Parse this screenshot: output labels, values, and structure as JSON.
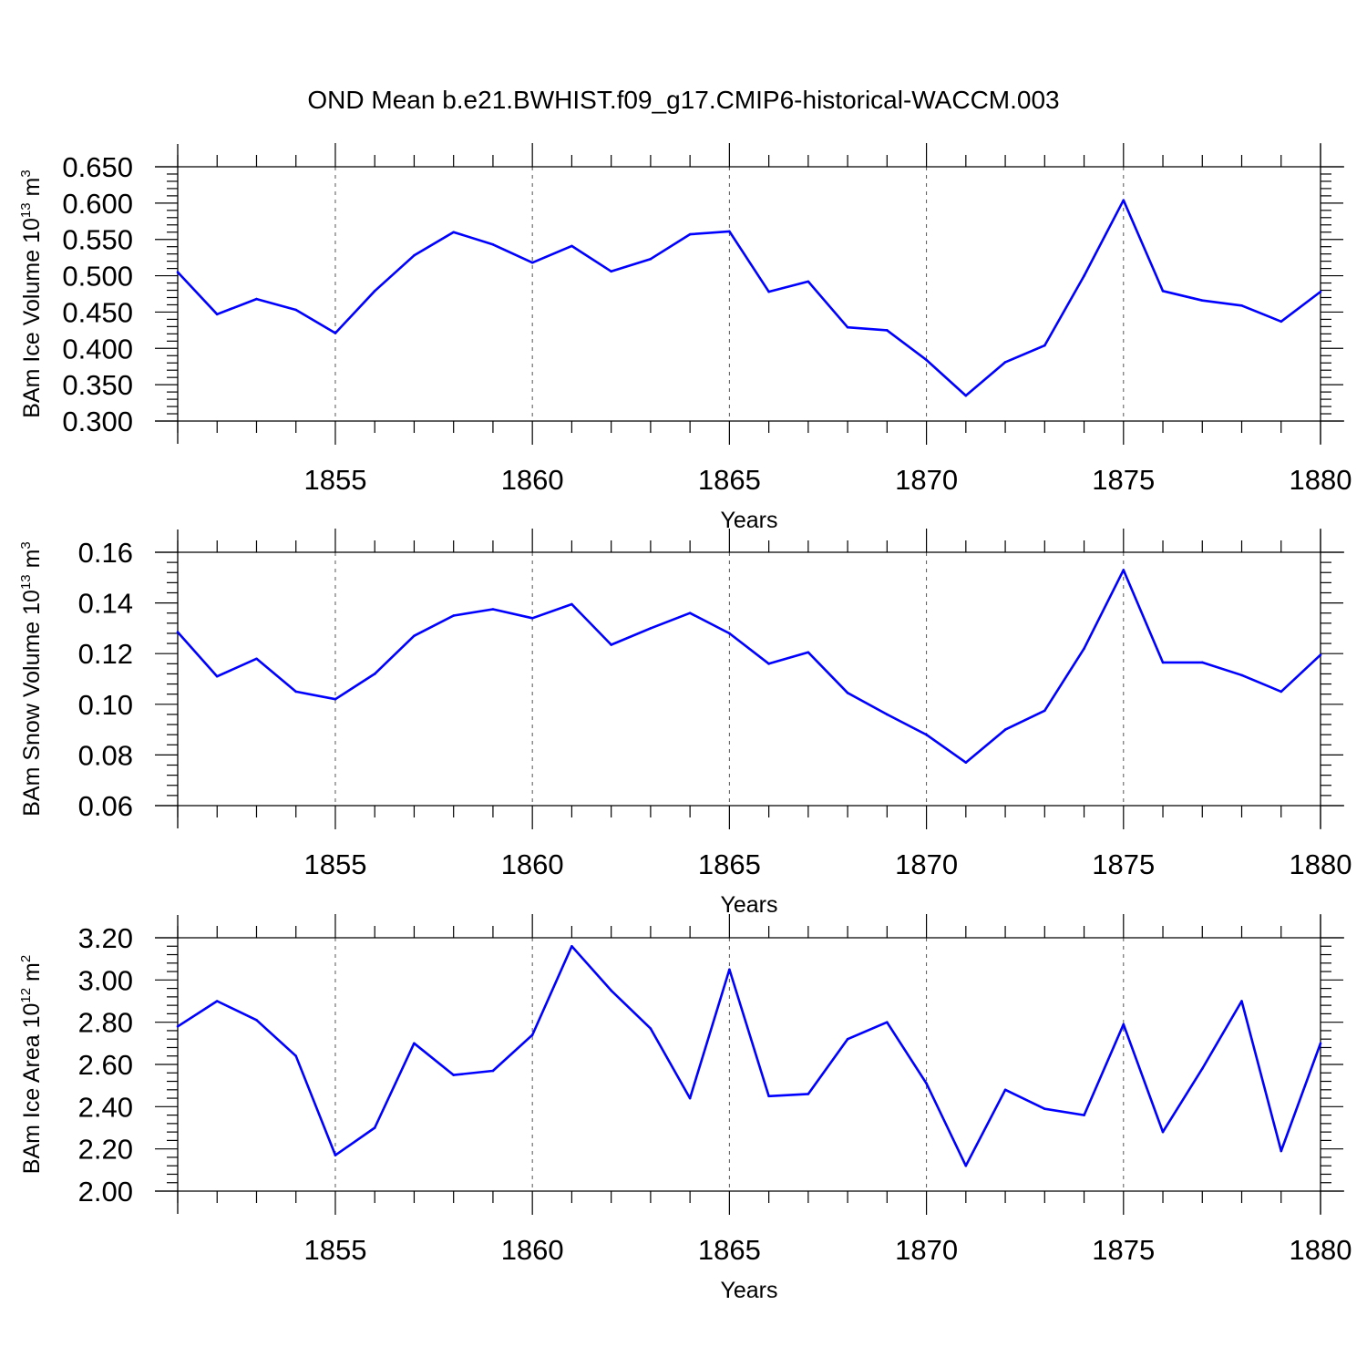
{
  "title": "OND Mean b.e21.BWHIST.f09_g17.CMIP6-historical-WACCM.003",
  "colors": {
    "series": "#0000ff",
    "axes": "#000000",
    "grid": "#555555"
  },
  "chart_data": [
    {
      "type": "line",
      "title": "OND Mean b.e21.BWHIST.f09_g17.CMIP6-historical-WACCM.003",
      "xlabel": "Years",
      "ylabel": {
        "main": "BAm Ice Volume 10",
        "exp": "13",
        "unit": " m",
        "unit_exp": "3"
      },
      "xlim": [
        1851,
        1880
      ],
      "ylim": [
        0.3,
        0.65
      ],
      "yticks": [
        "0.300",
        "0.350",
        "0.400",
        "0.450",
        "0.500",
        "0.550",
        "0.600",
        "0.650"
      ],
      "xticks": [
        "1855",
        "1860",
        "1865",
        "1870",
        "1875",
        "1880"
      ],
      "grid_x": [
        1855,
        1860,
        1865,
        1870,
        1875
      ],
      "x": [
        1851,
        1852,
        1853,
        1854,
        1855,
        1856,
        1857,
        1858,
        1859,
        1860,
        1861,
        1862,
        1863,
        1864,
        1865,
        1866,
        1867,
        1868,
        1869,
        1870,
        1871,
        1872,
        1873,
        1874,
        1875,
        1876,
        1877,
        1878,
        1879,
        1880
      ],
      "series": [
        {
          "name": "BAm Ice Volume",
          "values": [
            0.505,
            0.447,
            0.468,
            0.453,
            0.421,
            0.479,
            0.528,
            0.56,
            0.543,
            0.518,
            0.541,
            0.506,
            0.523,
            0.557,
            0.561,
            0.478,
            0.492,
            0.429,
            0.425,
            0.384,
            0.335,
            0.381,
            0.404,
            0.5,
            0.604,
            0.479,
            0.466,
            0.459,
            0.437,
            0.478
          ]
        }
      ]
    },
    {
      "type": "line",
      "xlabel": "Years",
      "ylabel": {
        "main": "BAm Snow Volume 10",
        "exp": "13",
        "unit": " m",
        "unit_exp": "3"
      },
      "xlim": [
        1851,
        1880
      ],
      "ylim": [
        0.06,
        0.16
      ],
      "yticks": [
        "0.06",
        "0.08",
        "0.10",
        "0.12",
        "0.14",
        "0.16"
      ],
      "xticks": [
        "1855",
        "1860",
        "1865",
        "1870",
        "1875",
        "1880"
      ],
      "grid_x": [
        1855,
        1860,
        1865,
        1870,
        1875
      ],
      "x": [
        1851,
        1852,
        1853,
        1854,
        1855,
        1856,
        1857,
        1858,
        1859,
        1860,
        1861,
        1862,
        1863,
        1864,
        1865,
        1866,
        1867,
        1868,
        1869,
        1870,
        1871,
        1872,
        1873,
        1874,
        1875,
        1876,
        1877,
        1878,
        1879,
        1880
      ],
      "series": [
        {
          "name": "BAm Snow Volume",
          "values": [
            0.1285,
            0.111,
            0.118,
            0.105,
            0.102,
            0.112,
            0.127,
            0.135,
            0.1375,
            0.134,
            0.1395,
            0.1235,
            0.13,
            0.136,
            0.128,
            0.116,
            0.1205,
            0.1045,
            0.096,
            0.088,
            0.077,
            0.09,
            0.0975,
            0.122,
            0.153,
            0.1165,
            0.1165,
            0.1115,
            0.105,
            0.1195
          ]
        }
      ]
    },
    {
      "type": "line",
      "xlabel": "Years",
      "ylabel": {
        "main": "BAm Ice Area 10",
        "exp": "12",
        "unit": " m",
        "unit_exp": "2"
      },
      "xlim": [
        1851,
        1880
      ],
      "ylim": [
        2.0,
        3.2
      ],
      "yticks": [
        "2.00",
        "2.20",
        "2.40",
        "2.60",
        "2.80",
        "3.00",
        "3.20"
      ],
      "xticks": [
        "1855",
        "1860",
        "1865",
        "1870",
        "1875",
        "1880"
      ],
      "grid_x": [
        1855,
        1860,
        1865,
        1870,
        1875
      ],
      "x": [
        1851,
        1852,
        1853,
        1854,
        1855,
        1856,
        1857,
        1858,
        1859,
        1860,
        1861,
        1862,
        1863,
        1864,
        1865,
        1866,
        1867,
        1868,
        1869,
        1870,
        1871,
        1872,
        1873,
        1874,
        1875,
        1876,
        1877,
        1878,
        1879,
        1880
      ],
      "series": [
        {
          "name": "BAm Ice Area",
          "values": [
            2.78,
            2.9,
            2.81,
            2.64,
            2.17,
            2.3,
            2.7,
            2.55,
            2.57,
            2.74,
            3.16,
            2.95,
            2.77,
            2.44,
            3.05,
            2.45,
            2.46,
            2.72,
            2.8,
            2.51,
            2.12,
            2.48,
            2.39,
            2.36,
            2.79,
            2.28,
            2.58,
            2.9,
            2.19,
            2.7
          ]
        }
      ]
    }
  ]
}
